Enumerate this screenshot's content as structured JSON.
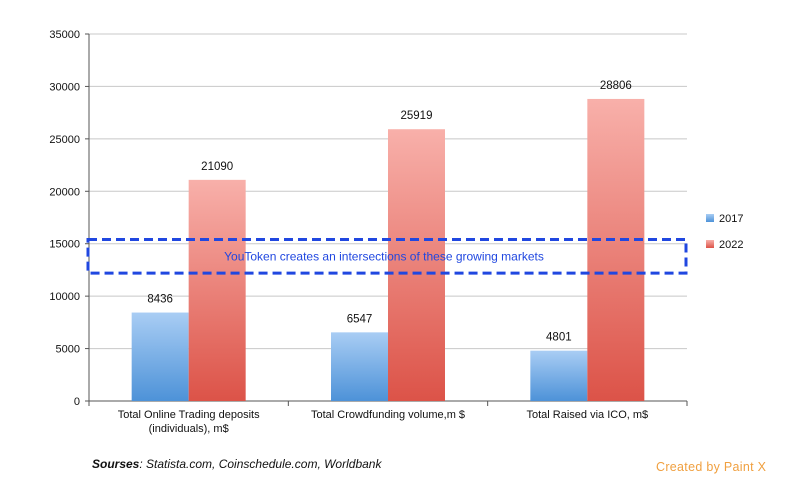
{
  "chart_data": {
    "type": "bar",
    "categories": [
      [
        "Total Online Trading deposits",
        "(individuals), m$"
      ],
      [
        "Total Crowdfunding volume,m $"
      ],
      [
        "Total Raised via ICO, m$"
      ]
    ],
    "series": [
      {
        "name": "2017",
        "values": [
          8436,
          6547,
          4801
        ],
        "color_top": "#a9cdf4",
        "color_bottom": "#4d92d8"
      },
      {
        "name": "2022",
        "values": [
          21090,
          25919,
          28806
        ],
        "color_top": "#f8b0aa",
        "color_bottom": "#dc5348"
      }
    ],
    "ylim": [
      0,
      35000
    ],
    "yticks": [
      0,
      5000,
      10000,
      15000,
      20000,
      25000,
      30000,
      35000
    ],
    "grid": true,
    "legend_position": "right",
    "annotation": {
      "text": "YouToken creates an intersections of these growing markets",
      "y_range": [
        12200,
        15400
      ],
      "color": "#2047e0"
    }
  },
  "sources": {
    "label": "Sourses",
    "text": ": Statista.com, Coinschedule.com, Worldbank"
  },
  "watermark": "Created by Paint X"
}
